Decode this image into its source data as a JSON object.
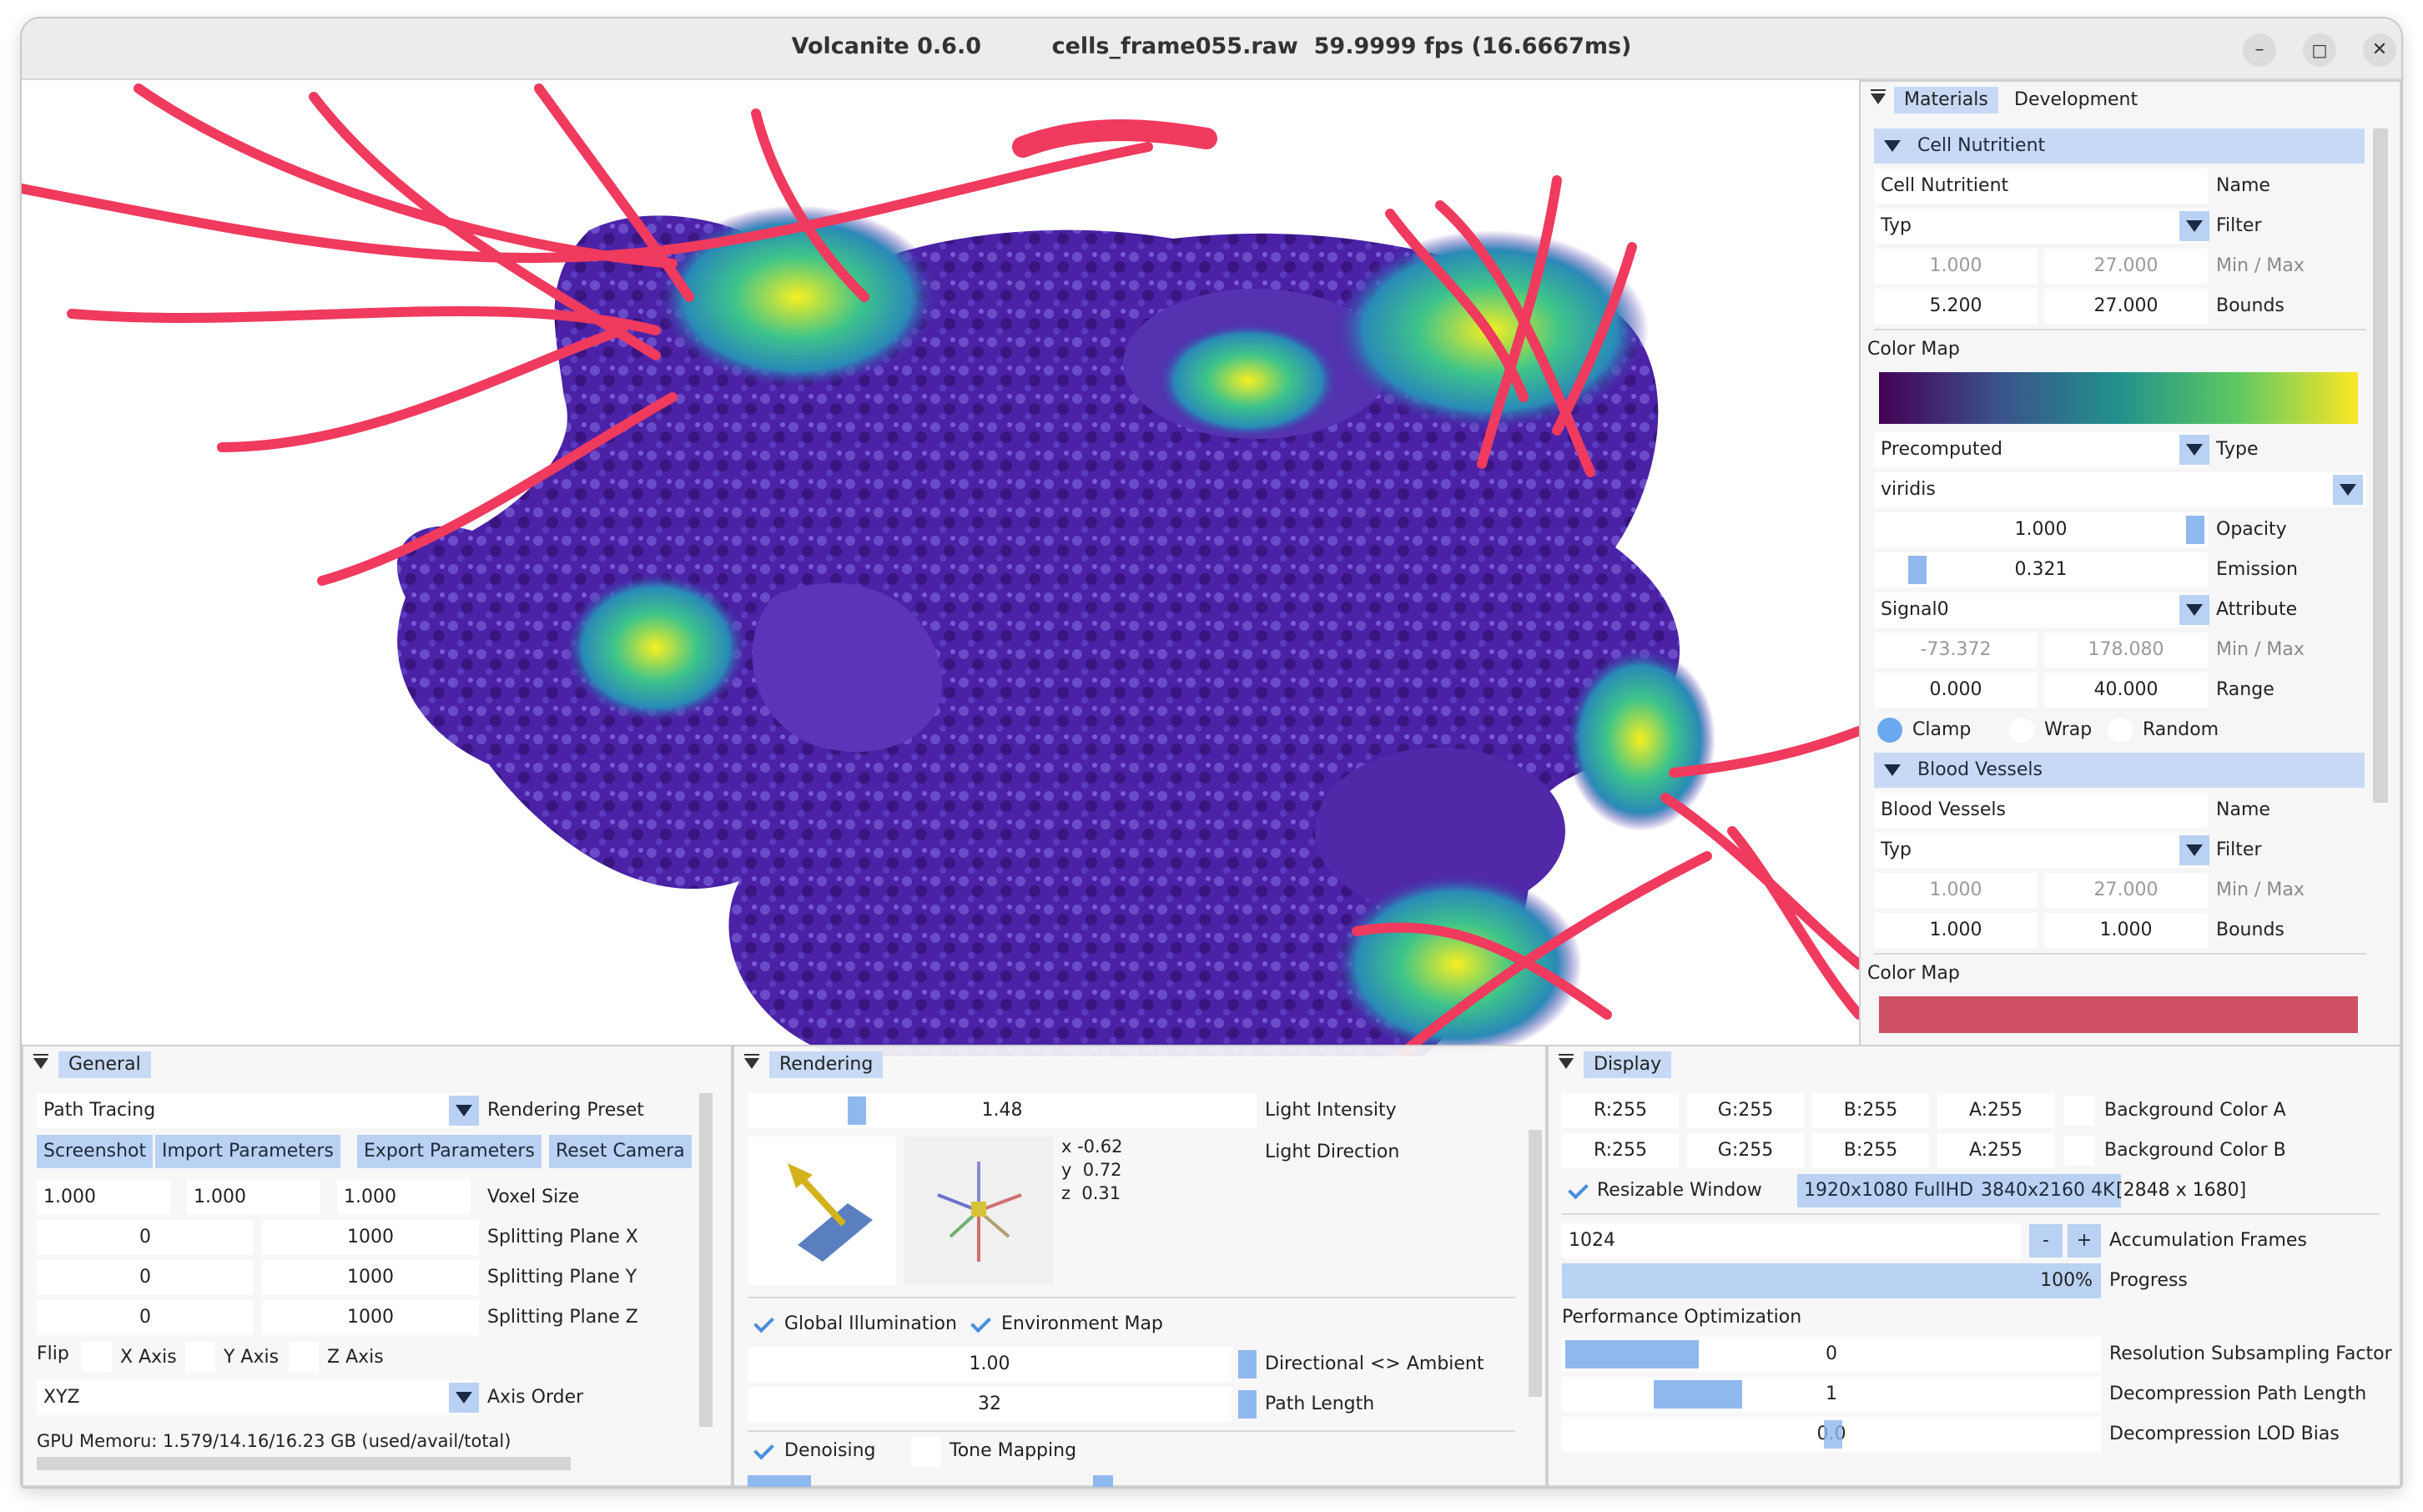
{
  "window": {
    "title": "Volcanite 0.6.0         cells_frame055.raw  59.9999 fps (16.6667ms)",
    "controls": {
      "minimize": "–",
      "maximize": "□",
      "close": "✕"
    }
  },
  "colors": {
    "accent": "#b9d1f3",
    "section": "#c7d9f5",
    "vessel": "#f03a5e",
    "cell_base": "#4a1fa0"
  },
  "general": {
    "tab": "General",
    "preset_value": "Path Tracing",
    "preset_label": "Rendering Preset",
    "buttons": [
      "Screenshot",
      "Import Parameters",
      "Export Parameters",
      "Reset Camera"
    ],
    "voxel_size": [
      "1.000",
      "1.000",
      "1.000"
    ],
    "voxel_label": "Voxel Size",
    "planes": [
      {
        "min": "0",
        "max": "1000",
        "label": "Splitting Plane X"
      },
      {
        "min": "0",
        "max": "1000",
        "label": "Splitting Plane Y"
      },
      {
        "min": "0",
        "max": "1000",
        "label": "Splitting Plane Z"
      }
    ],
    "flip_label": "Flip",
    "flip_axes": [
      "X Axis",
      "Y Axis",
      "Z Axis"
    ],
    "axis_order_value": "XYZ",
    "axis_order_label": "Axis Order",
    "gpu_memory": "GPU Memoru: 1.579/14.16/16.23 GB (used/avail/total)"
  },
  "rendering": {
    "tab": "Rendering",
    "light_intensity": "1.48",
    "light_intensity_label": "Light Intensity",
    "light_intensity_level": 0.2,
    "light_direction_label": "Light Direction",
    "dir_x": "x -0.62",
    "dir_y": "y  0.72",
    "dir_z": "z  0.31",
    "global_illumination": "Global Illumination",
    "environment_map": "Environment Map",
    "directional_ambient": "1.00",
    "directional_ambient_label": "Directional <> Ambient",
    "path_length": "32",
    "path_length_label": "Path Length",
    "denoising": "Denoising",
    "tone_mapping": "Tone Mapping"
  },
  "display": {
    "tab": "Display",
    "bg_a": [
      "R:255",
      "G:255",
      "B:255",
      "A:255"
    ],
    "bg_a_label": "Background Color A",
    "bg_b": [
      "R:255",
      "G:255",
      "B:255",
      "A:255"
    ],
    "bg_b_label": "Background Color B",
    "resizable": "Resizable Window",
    "res_fhd": "1920x1080 FullHD",
    "res_4k": "3840x2160 4K",
    "current_res": "[2848 x 1680]",
    "accum_frames": "1024",
    "minus": "-",
    "plus": "+",
    "accum_label": "Accumulation Frames",
    "progress_text": "100%",
    "progress_value": 1.0,
    "progress_label": "Progress",
    "perf_heading": "Performance Optimization",
    "res_sub": "0",
    "res_sub_label": "Resolution Subsampling Factor",
    "decomp_path": "1",
    "decomp_path_label": "Decompression Path Length",
    "lod_bias": "0.0",
    "lod_bias_label": "Decompression LOD Bias"
  },
  "materials": {
    "tabs": [
      "Materials",
      "Development"
    ],
    "cell": {
      "section": "Cell Nutritient",
      "name": "Cell Nutritient",
      "name_label": "Name",
      "filter": "Typ",
      "filter_label": "Filter",
      "min": "1.000",
      "max": "27.000",
      "minmax_label": "Min / Max",
      "bmin": "5.200",
      "bmax": "27.000",
      "bounds_label": "Bounds",
      "colormap_label": "Color Map",
      "type": "Precomputed",
      "type_label": "Type",
      "map_name": "viridis",
      "opacity": "1.000",
      "opacity_label": "Opacity",
      "opacity_level": 1.0,
      "emission": "0.321",
      "emission_label": "Emission",
      "emission_level": 0.1,
      "attribute": "Signal0",
      "attribute_label": "Attribute",
      "amin": "-73.372",
      "amax": "178.080",
      "aminmax_label": "Min / Max",
      "rmin": "0.000",
      "rmax": "40.000",
      "range_label": "Range",
      "clamp": "Clamp",
      "wrap": "Wrap",
      "random": "Random"
    },
    "vessels": {
      "section": "Blood Vessels",
      "name": "Blood Vessels",
      "name_label": "Name",
      "filter": "Typ",
      "filter_label": "Filter",
      "min": "1.000",
      "max": "27.000",
      "minmax_label": "Min / Max",
      "bmin": "1.000",
      "bmax": "1.000",
      "bounds_label": "Bounds",
      "colormap_label": "Color Map"
    }
  }
}
